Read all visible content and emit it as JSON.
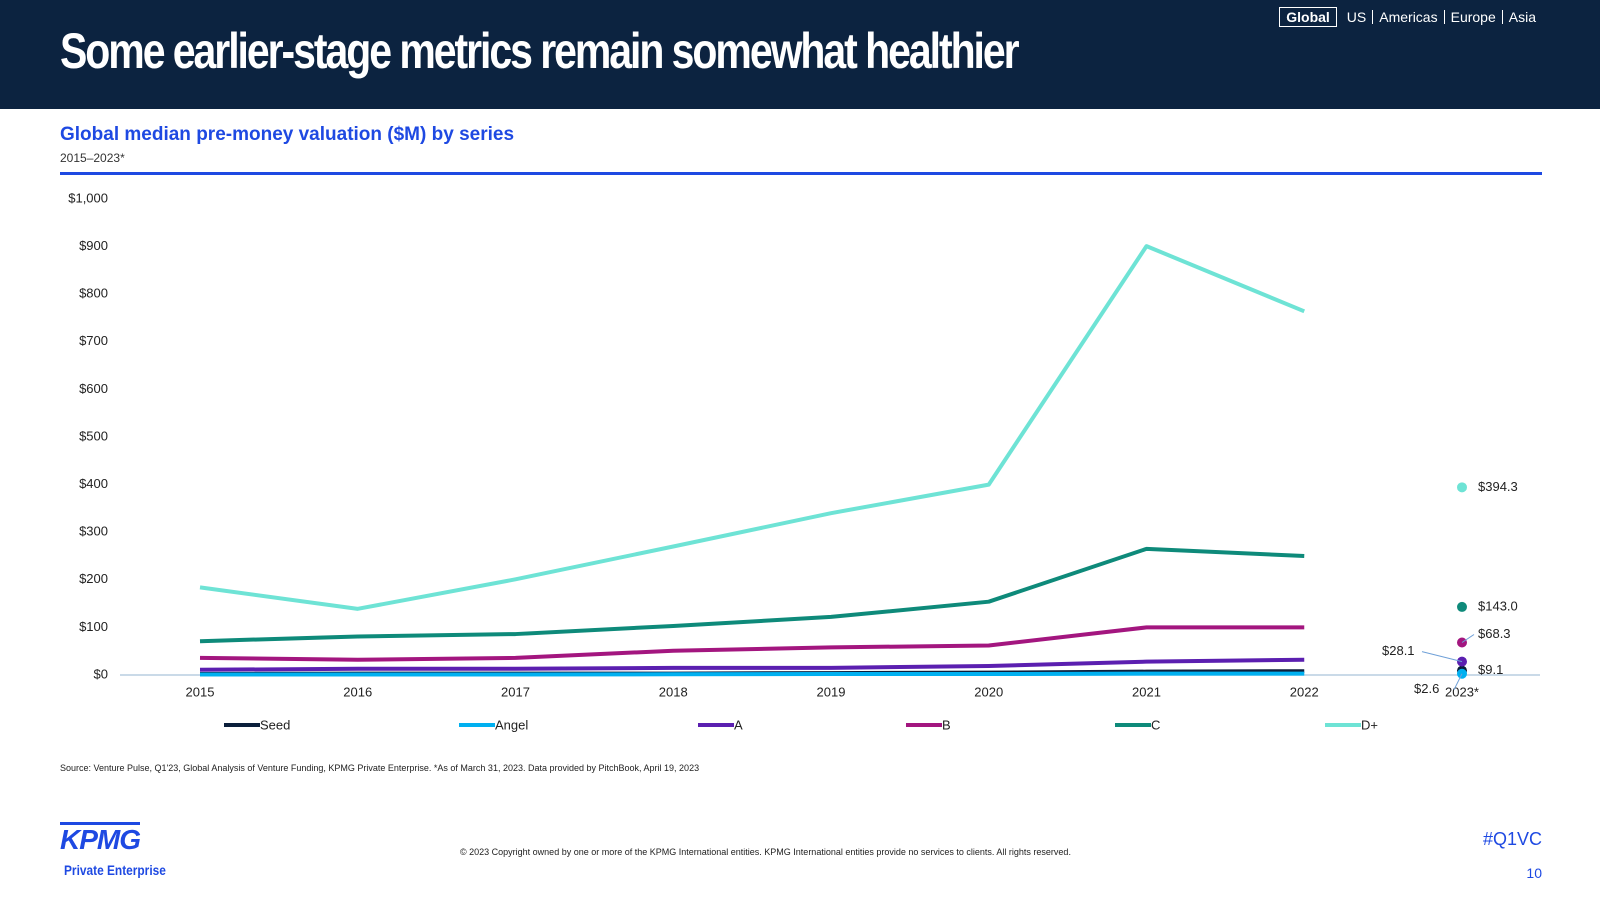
{
  "header": {
    "title": "Some earlier-stage metrics remain somewhat healthier",
    "nav": [
      "Global",
      "US",
      "Americas",
      "Europe",
      "Asia"
    ]
  },
  "chart_data": {
    "type": "line",
    "title": "Global median pre-money valuation ($M) by series",
    "subtitle": "2015–2023*",
    "categories": [
      "2015",
      "2016",
      "2017",
      "2018",
      "2019",
      "2020",
      "2021",
      "2022",
      "2023*"
    ],
    "ylim": [
      0,
      1000
    ],
    "yticks": [
      {
        "value": 0,
        "label": "$0"
      },
      {
        "value": 100,
        "label": "$100"
      },
      {
        "value": 200,
        "label": "$200"
      },
      {
        "value": 300,
        "label": "$300"
      },
      {
        "value": 400,
        "label": "$400"
      },
      {
        "value": 500,
        "label": "$500"
      },
      {
        "value": 600,
        "label": "$600"
      },
      {
        "value": 700,
        "label": "$700"
      },
      {
        "value": 800,
        "label": "$800"
      },
      {
        "value": 900,
        "label": "$900"
      },
      {
        "value": 1000,
        "label": "$1,000"
      }
    ],
    "grid": false,
    "legend": "bottom",
    "series": [
      {
        "name": "Seed",
        "color": "#0b1f3b",
        "values": [
          2,
          3,
          3,
          3,
          4,
          5,
          7,
          8,
          9.1
        ],
        "value_labels": [
          null,
          null,
          null,
          null,
          null,
          null,
          null,
          null,
          "$9.1"
        ]
      },
      {
        "name": "Angel",
        "color": "#00b0f0",
        "values": [
          1,
          1,
          1,
          1.5,
          2,
          2,
          3,
          3,
          2.6
        ],
        "value_labels": [
          null,
          null,
          null,
          null,
          null,
          null,
          null,
          null,
          "$2.6"
        ]
      },
      {
        "name": "A",
        "color": "#5b1fb0",
        "values": [
          11,
          13,
          13,
          15,
          15,
          19,
          28,
          32,
          28.1
        ],
        "value_labels": [
          null,
          null,
          null,
          null,
          null,
          null,
          null,
          null,
          "$28.1"
        ]
      },
      {
        "name": "B",
        "color": "#a3167f",
        "values": [
          36,
          32,
          36,
          51,
          58,
          62,
          100,
          100,
          68.3
        ],
        "value_labels": [
          null,
          null,
          null,
          null,
          null,
          null,
          null,
          null,
          "$68.3"
        ]
      },
      {
        "name": "C",
        "color": "#0e8a7a",
        "values": [
          71,
          81,
          86,
          103,
          122,
          154,
          265,
          250,
          143.0
        ],
        "value_labels": [
          null,
          null,
          null,
          null,
          null,
          null,
          null,
          null,
          "$143.0"
        ]
      },
      {
        "name": "D+",
        "color": "#6ee3d5",
        "values": [
          184,
          139,
          201,
          270,
          340,
          400,
          901,
          764,
          394.3
        ],
        "value_labels": [
          null,
          null,
          null,
          null,
          null,
          null,
          null,
          null,
          "$394.3"
        ]
      }
    ]
  },
  "footer": {
    "source": "Source: Venture Pulse, Q1'23, Global Analysis of Venture Funding, KPMG Private Enterprise. *As of March 31, 2023. Data provided by PitchBook, April 19, 2023",
    "copyright": "© 2023 Copyright owned by one or more of the KPMG International entities. KPMG International entities provide no services to clients. All rights reserved.",
    "logo": "KPMG",
    "logo_sub": "Private Enterprise",
    "hashtag": "#Q1VC",
    "page": "10"
  }
}
